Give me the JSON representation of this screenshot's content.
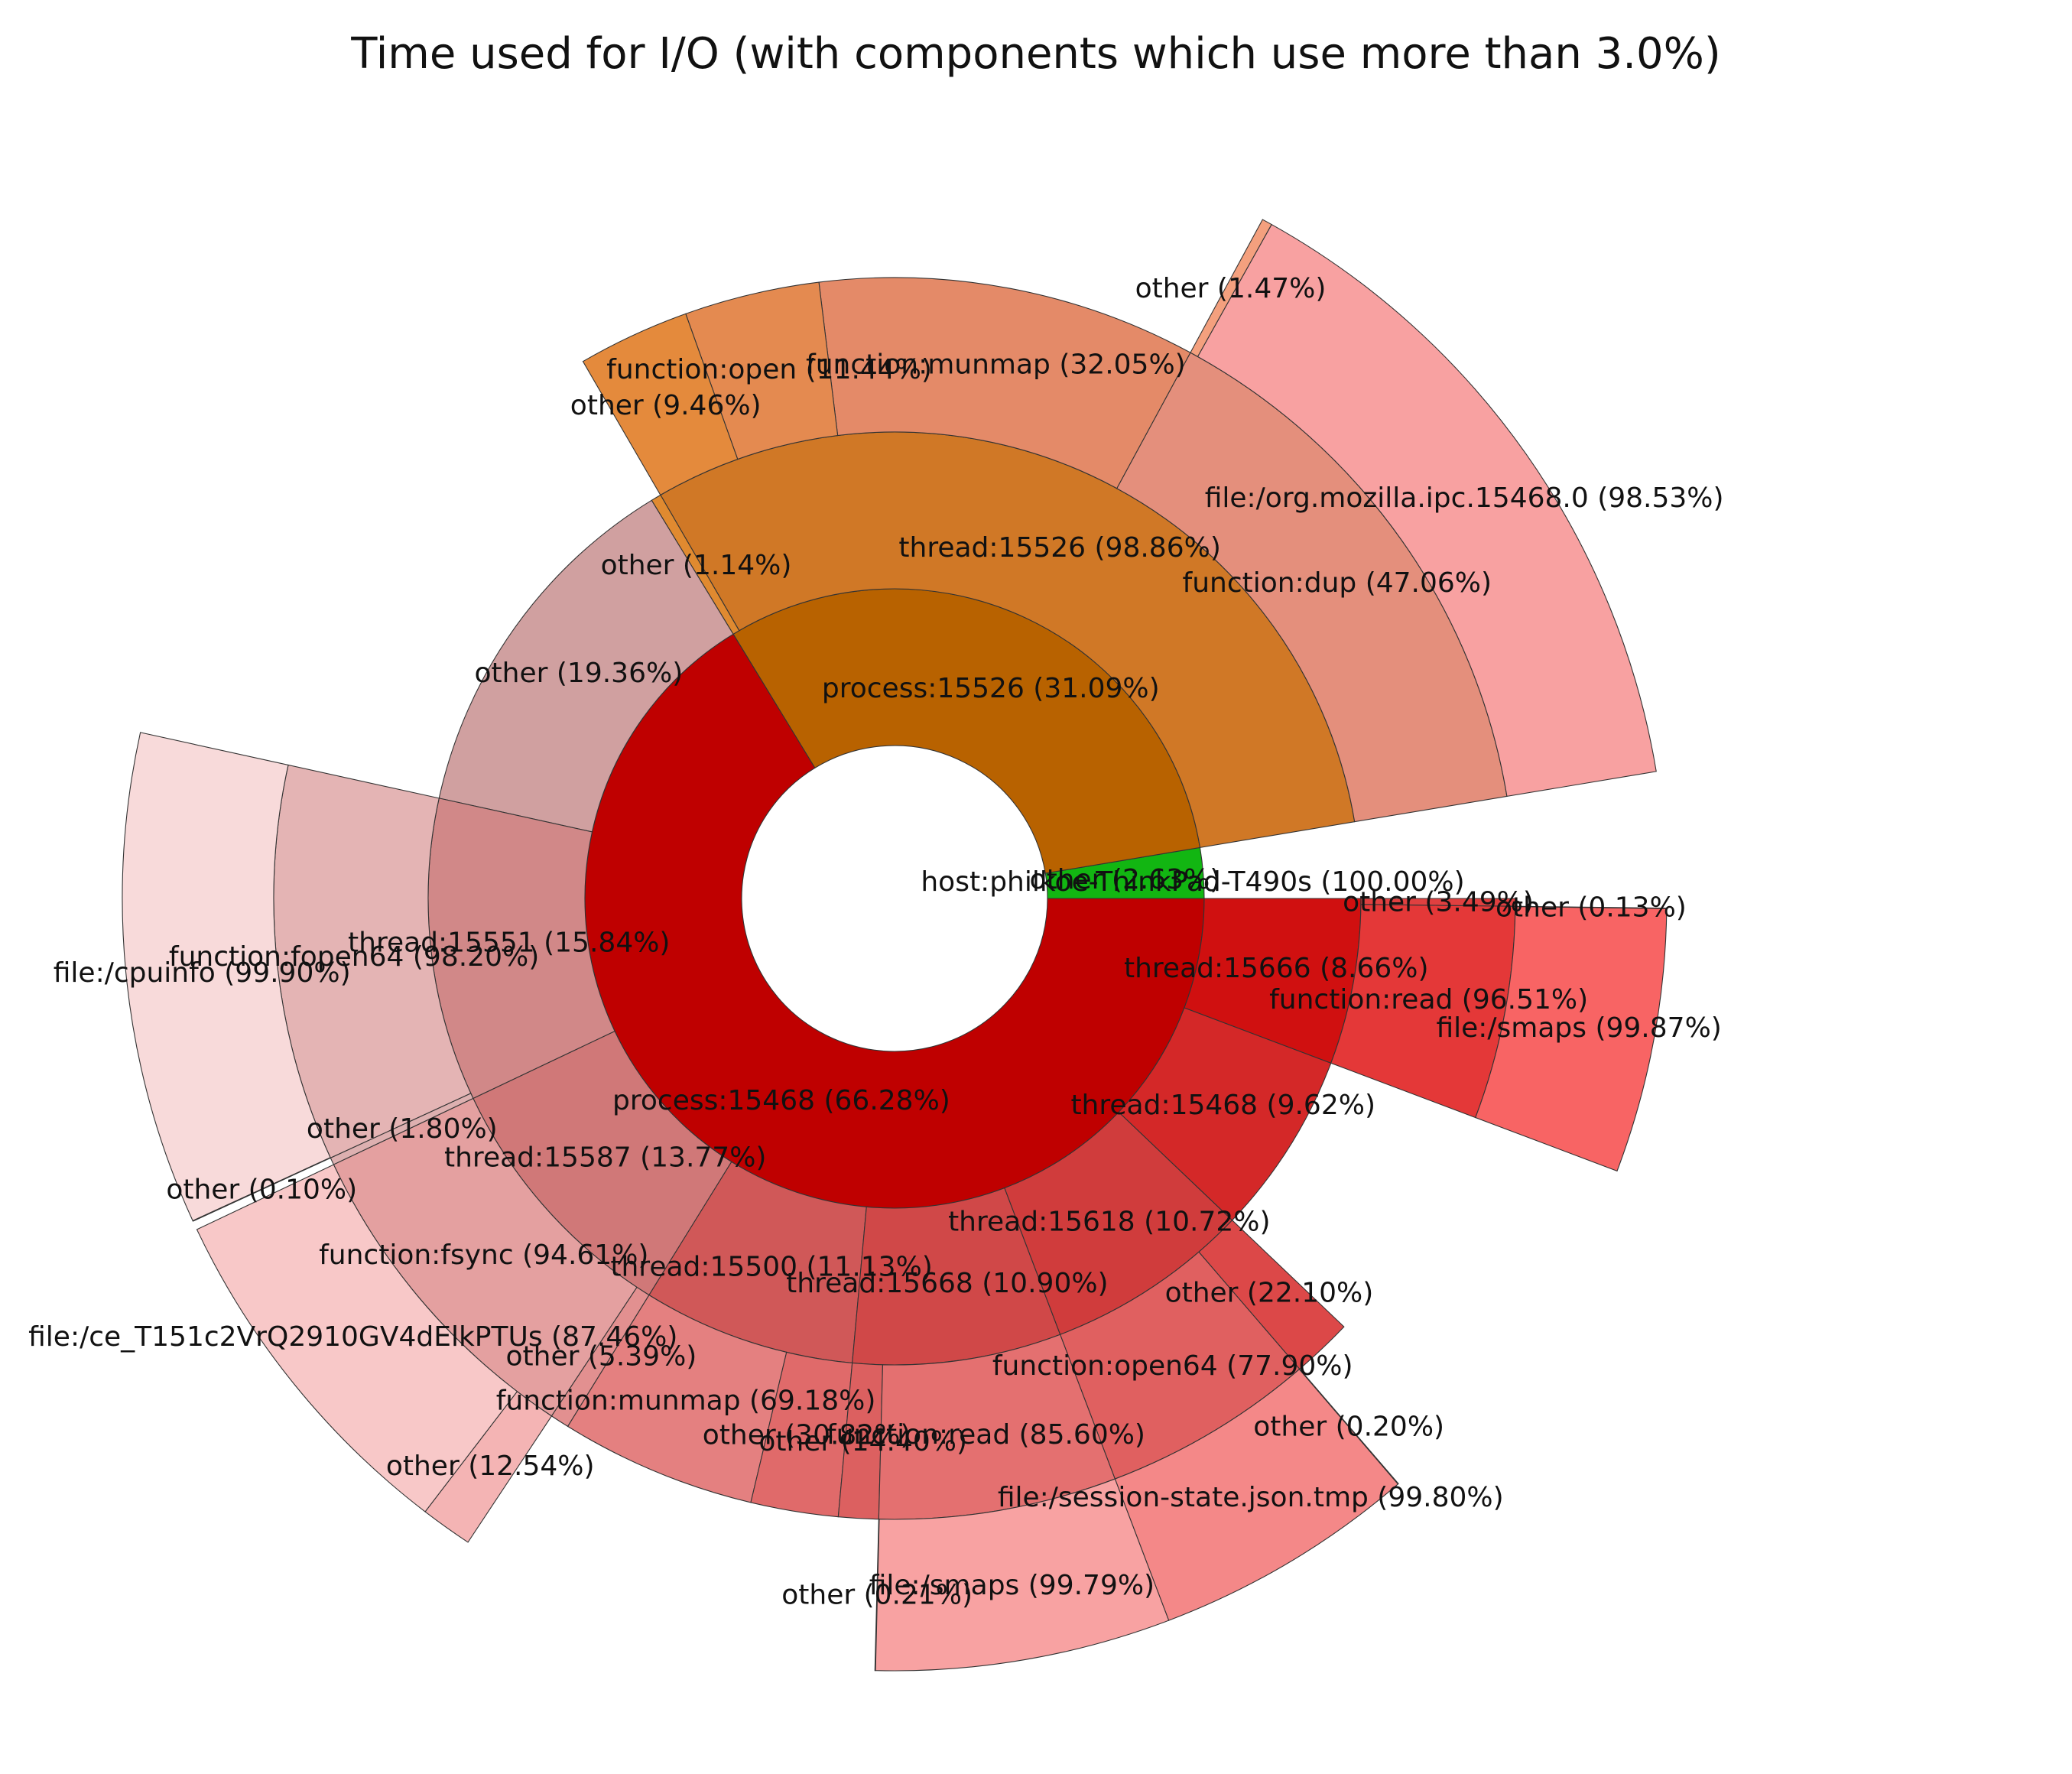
{
  "chart_data": {
    "type": "sunburst",
    "title": "Time used for I/O (with components which use more than 3.0%)",
    "root": {
      "label": "host:philkoe-ThinkPad-T490s (100.00%)",
      "percent": 100.0,
      "children": [
        {
          "label": "process:15526 (31.09%)",
          "percent": 31.09,
          "color": "#b86200",
          "children": [
            {
              "label": "thread:15526 (98.86%)",
              "percent": 98.86,
              "color": "#d07826",
              "children": [
                {
                  "label": "function:dup (47.06%)",
                  "percent": 47.06,
                  "color": "#e48f7c",
                  "children": [
                    {
                      "label": "file:/org.mozilla.ipc.15468.0 (98.53%)",
                      "percent": 98.53,
                      "color": "#f8a1a1"
                    },
                    {
                      "label": "other (1.47%)",
                      "percent": 1.47,
                      "color": "#f4a07e"
                    }
                  ]
                },
                {
                  "label": "function:munmap (32.05%)",
                  "percent": 32.05,
                  "color": "#e48a68",
                  "children": []
                },
                {
                  "label": "function:open (11.44%)",
                  "percent": 11.44,
                  "color": "#e48a50",
                  "children": []
                },
                {
                  "label": "other (9.46%)",
                  "percent": 9.46,
                  "color": "#e48a3c",
                  "children": []
                }
              ]
            },
            {
              "label": "other (1.14%)",
              "percent": 1.14,
              "color": "#e08a30",
              "children": []
            }
          ]
        },
        {
          "label": "other (2.63%)",
          "percent": 2.63,
          "color": "#12b612",
          "children": []
        },
        {
          "label": "process:15468 (66.28%)",
          "percent": 66.28,
          "color": "#bf0000",
          "children": [
            {
              "label": "other (19.36%)",
              "percent": 19.36,
              "color": "#d0a0a0",
              "children": []
            },
            {
              "label": "thread:15551 (15.84%)",
              "percent": 15.84,
              "color": "#d18888",
              "children": [
                {
                  "label": "function:fopen64 (98.20%)",
                  "percent": 98.2,
                  "color": "#e4b4b4",
                  "children": [
                    {
                      "label": "file:/cpuinfo (99.90%)",
                      "percent": 99.9,
                      "color": "#f8dada"
                    },
                    {
                      "label": "other (0.10%)",
                      "percent": 0.1,
                      "color": "#f4d0d0"
                    }
                  ]
                },
                {
                  "label": "other (1.80%)",
                  "percent": 1.8,
                  "color": "#ddb0b0",
                  "children": []
                }
              ]
            },
            {
              "label": "thread:15587 (13.77%)",
              "percent": 13.77,
              "color": "#d07878",
              "children": [
                {
                  "label": "function:fsync (94.61%)",
                  "percent": 94.61,
                  "color": "#e4a0a0",
                  "children": [
                    {
                      "label": "file:/ce_T151c2VrQ2910GV4dElkPTUs (87.46%)",
                      "percent": 87.46,
                      "color": "#f8c8c8"
                    },
                    {
                      "label": "other (12.54%)",
                      "percent": 12.54,
                      "color": "#f4b4b4"
                    }
                  ]
                },
                {
                  "label": "other (5.39%)",
                  "percent": 5.39,
                  "color": "#e29090",
                  "children": []
                }
              ]
            },
            {
              "label": "thread:15500 (11.13%)",
              "percent": 11.13,
              "color": "#d05858",
              "children": [
                {
                  "label": "function:munmap (69.18%)",
                  "percent": 69.18,
                  "color": "#e48080",
                  "children": []
                },
                {
                  "label": "other (30.82%)",
                  "percent": 30.82,
                  "color": "#e06a6a",
                  "children": []
                }
              ]
            },
            {
              "label": "thread:15668 (10.90%)",
              "percent": 10.9,
              "color": "#d04848",
              "children": [
                {
                  "label": "other (14.40%)",
                  "percent": 14.4,
                  "color": "#dc6060",
                  "children": []
                },
                {
                  "label": "function:read (85.60%)",
                  "percent": 85.6,
                  "color": "#e47070",
                  "children": [
                    {
                      "label": "other (0.21%)",
                      "percent": 0.21,
                      "color": "#f4a0a0"
                    },
                    {
                      "label": "file:/smaps (99.79%)",
                      "percent": 99.79,
                      "color": "#f8a2a2"
                    }
                  ]
                }
              ]
            },
            {
              "label": "thread:15618 (10.72%)",
              "percent": 10.72,
              "color": "#d03c3c",
              "children": [
                {
                  "label": "function:open64 (77.90%)",
                  "percent": 77.9,
                  "color": "#e06060",
                  "children": [
                    {
                      "label": "file:/session-state.json.tmp (99.80%)",
                      "percent": 99.8,
                      "color": "#f48888"
                    },
                    {
                      "label": "other (0.20%)",
                      "percent": 0.2,
                      "color": "#f07070"
                    }
                  ]
                },
                {
                  "label": "other (22.10%)",
                  "percent": 22.1,
                  "color": "#dc4848",
                  "children": []
                }
              ]
            },
            {
              "label": "thread:15468 (9.62%)",
              "percent": 9.62,
              "color": "#d42828",
              "children": []
            },
            {
              "label": "thread:15666 (8.66%)",
              "percent": 8.66,
              "color": "#d01010",
              "children": [
                {
                  "label": "function:read (96.51%)",
                  "percent": 96.51,
                  "color": "#e43838",
                  "children": [
                    {
                      "label": "file:/smaps (99.87%)",
                      "percent": 99.87,
                      "color": "#f86464"
                    },
                    {
                      "label": "other (0.13%)",
                      "percent": 0.13,
                      "color": "#f45858"
                    }
                  ]
                },
                {
                  "label": "other (3.49%)",
                  "percent": 3.49,
                  "color": "#e04040",
                  "children": []
                }
              ]
            }
          ]
        }
      ]
    }
  }
}
